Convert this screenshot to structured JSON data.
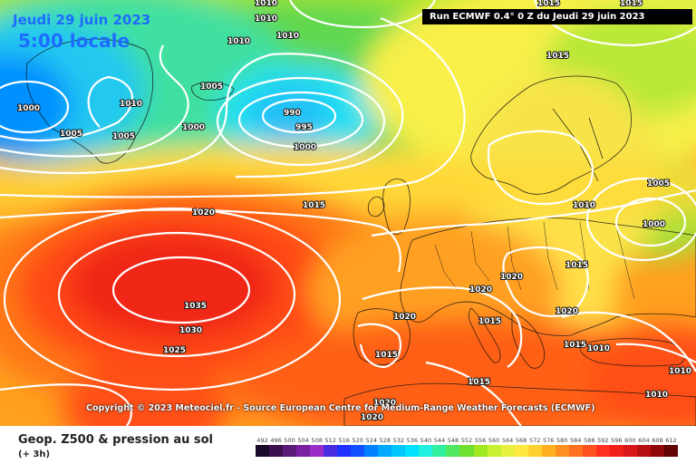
{
  "header": {
    "date": "Jeudi 29 juin 2023",
    "local_time": "5:00 locale",
    "run": "Run ECMWF 0.4° 0 Z du Jeudi 29 juin 2023"
  },
  "copyright": "Copyright © 2023 Meteociel.fr - Source European Centre for Medium-Range Weather Forecasts (ECMWF)",
  "footer": {
    "parameter": "Geop. Z500 & pression au sol",
    "lead": "(+ 3h)"
  },
  "legend": {
    "ticks": [
      "492",
      "496",
      "500",
      "504",
      "508",
      "512",
      "516",
      "520",
      "524",
      "528",
      "532",
      "536",
      "540",
      "544",
      "548",
      "552",
      "556",
      "560",
      "564",
      "568",
      "572",
      "576",
      "580",
      "584",
      "588",
      "592",
      "596",
      "600",
      "604",
      "608",
      "612"
    ],
    "colors": [
      "#1a0a2a",
      "#3a0f4e",
      "#5a1a78",
      "#7a1fa0",
      "#9a2cc8",
      "#4a2ce0",
      "#2030ff",
      "#1050ff",
      "#0080ff",
      "#00a8ff",
      "#00c8ff",
      "#00e0ff",
      "#20f0e0",
      "#30f0a0",
      "#50e860",
      "#70e030",
      "#a0e820",
      "#c8f030",
      "#e8f040",
      "#ffe840",
      "#ffd030",
      "#ffb020",
      "#ff9020",
      "#ff7020",
      "#ff5020",
      "#ff3020",
      "#f02018",
      "#d81818",
      "#b81010",
      "#900808",
      "#600404"
    ]
  },
  "isobars": [
    {
      "value": "1010",
      "kind": "label"
    },
    {
      "value": "1010",
      "kind": "label"
    },
    {
      "value": "1010",
      "kind": "label"
    },
    {
      "value": "1015",
      "kind": "label"
    },
    {
      "value": "1015",
      "kind": "label"
    },
    {
      "value": "1010",
      "kind": "label"
    },
    {
      "value": "1015",
      "kind": "label"
    },
    {
      "value": "1005",
      "kind": "label"
    },
    {
      "value": "1010",
      "kind": "label"
    },
    {
      "value": "1000",
      "kind": "label"
    },
    {
      "value": "990",
      "kind": "label"
    },
    {
      "value": "995",
      "kind": "label"
    },
    {
      "value": "1000",
      "kind": "label"
    },
    {
      "value": "1000",
      "kind": "label"
    },
    {
      "value": "1005",
      "kind": "label"
    },
    {
      "value": "1005",
      "kind": "label"
    },
    {
      "value": "1015",
      "kind": "label"
    },
    {
      "value": "1020",
      "kind": "label"
    },
    {
      "value": "1005",
      "kind": "label"
    },
    {
      "value": "1010",
      "kind": "label"
    },
    {
      "value": "1000",
      "kind": "label"
    },
    {
      "value": "1015",
      "kind": "label"
    },
    {
      "value": "1020",
      "kind": "label"
    },
    {
      "value": "1020",
      "kind": "label"
    },
    {
      "value": "1020",
      "kind": "label"
    },
    {
      "value": "1015",
      "kind": "label"
    },
    {
      "value": "1020",
      "kind": "label"
    },
    {
      "value": "1035",
      "kind": "label"
    },
    {
      "value": "1030",
      "kind": "label"
    },
    {
      "value": "1025",
      "kind": "label"
    },
    {
      "value": "1015",
      "kind": "label"
    },
    {
      "value": "1015",
      "kind": "label"
    },
    {
      "value": "1010",
      "kind": "label"
    },
    {
      "value": "1015",
      "kind": "label"
    },
    {
      "value": "1010",
      "kind": "label"
    },
    {
      "value": "1010",
      "kind": "label"
    },
    {
      "value": "1020",
      "kind": "label"
    },
    {
      "value": "1020",
      "kind": "label"
    }
  ]
}
